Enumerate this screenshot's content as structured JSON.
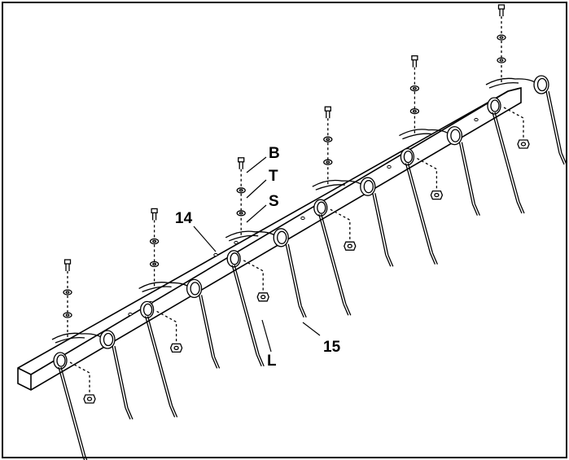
{
  "callouts": {
    "bolt": "B",
    "tooth_lock_washer": "T",
    "spacer_washer": "S",
    "lock_nut": "L",
    "tine_bar": "14",
    "spring_tine": "15"
  },
  "assembly": {
    "tine_pair_count": 6
  },
  "colors": {
    "line": "#000000",
    "background": "#ffffff"
  }
}
